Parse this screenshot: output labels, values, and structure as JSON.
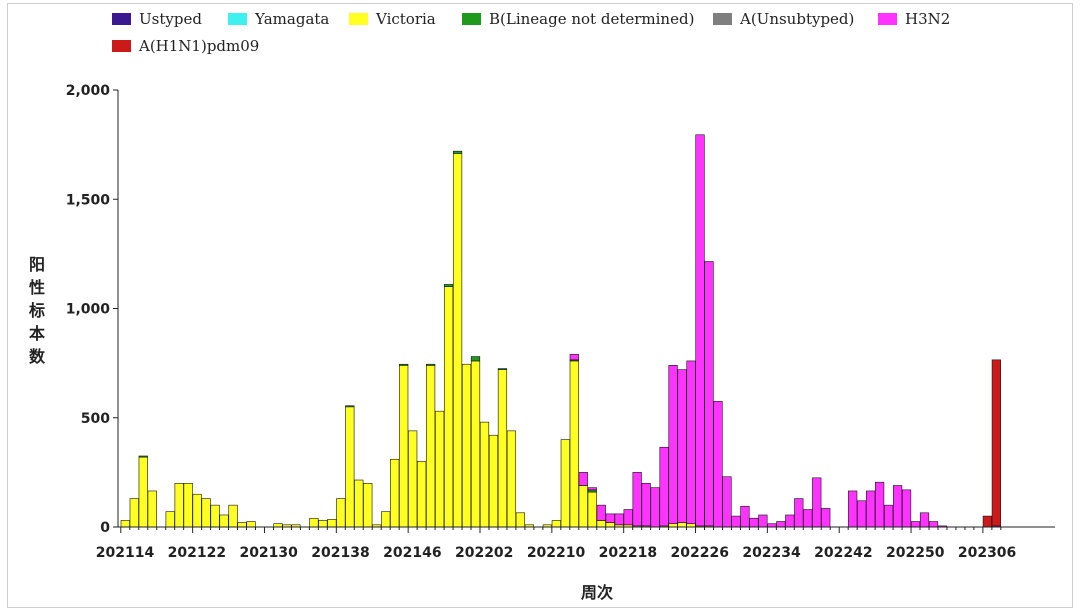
{
  "colors": {
    "Ustyped": "#3b1a8f",
    "Yamagata": "#3ff0f0",
    "Victoria": "#ffff22",
    "B(Lineage not determined)": "#1f9a1f",
    "A(Unsubtyped)": "#7f7f7f",
    "H3N2": "#ff33ff",
    "A(H1N1)pdm09": "#cc1a1a"
  },
  "chart_data": {
    "type": "bar",
    "stacked": true,
    "title": "",
    "xlabel": "周次",
    "ylabel": "阳性标本数",
    "ylim": [
      0,
      2000
    ],
    "yticks": [
      "0",
      "500",
      "1,000",
      "1,500",
      "2,000"
    ],
    "xtick_labels": [
      "202114",
      "202122",
      "202130",
      "202138",
      "202146",
      "202202",
      "202210",
      "202218",
      "202226",
      "202234",
      "202242",
      "202250",
      "202306"
    ],
    "legend_position": "top",
    "categories": [
      "202114",
      "202115",
      "202116",
      "202117",
      "202118",
      "202119",
      "202120",
      "202121",
      "202122",
      "202123",
      "202124",
      "202125",
      "202126",
      "202127",
      "202128",
      "202129",
      "202130",
      "202131",
      "202132",
      "202133",
      "202134",
      "202135",
      "202136",
      "202137",
      "202138",
      "202139",
      "202140",
      "202141",
      "202142",
      "202143",
      "202144",
      "202145",
      "202146",
      "202147",
      "202148",
      "202149",
      "202150",
      "202151",
      "202152",
      "202201",
      "202202",
      "202203",
      "202204",
      "202205",
      "202206",
      "202207",
      "202208",
      "202209",
      "202210",
      "202211",
      "202212",
      "202213",
      "202214",
      "202215",
      "202216",
      "202217",
      "202218",
      "202219",
      "202220",
      "202221",
      "202222",
      "202223",
      "202224",
      "202225",
      "202226",
      "202227",
      "202228",
      "202229",
      "202230",
      "202231",
      "202232",
      "202233",
      "202234",
      "202235",
      "202236",
      "202237",
      "202238",
      "202239",
      "202240",
      "202241",
      "202242",
      "202243",
      "202244",
      "202245",
      "202246",
      "202247",
      "202248",
      "202249",
      "202250",
      "202251",
      "202252",
      "202301",
      "202302",
      "202303",
      "202304",
      "202305",
      "202306",
      "202307"
    ],
    "series": [
      {
        "name": "Ustyped",
        "values": [
          0,
          0,
          0,
          0,
          0,
          0,
          0,
          0,
          0,
          0,
          0,
          0,
          0,
          0,
          0,
          0,
          0,
          0,
          0,
          0,
          0,
          0,
          0,
          0,
          0,
          0,
          0,
          0,
          0,
          0,
          0,
          0,
          0,
          0,
          0,
          0,
          0,
          0,
          0,
          0,
          0,
          0,
          0,
          0,
          0,
          0,
          0,
          0,
          0,
          0,
          0,
          0,
          0,
          0,
          0,
          0,
          0,
          0,
          0,
          0,
          0,
          0,
          0,
          0,
          0,
          0,
          0,
          0,
          0,
          0,
          0,
          0,
          0,
          0,
          0,
          0,
          0,
          0,
          0,
          0,
          0,
          0,
          0,
          0,
          0,
          0,
          0,
          0,
          0,
          0,
          0,
          0,
          0,
          0,
          0,
          0,
          0,
          0
        ]
      },
      {
        "name": "Yamagata",
        "values": [
          0,
          0,
          0,
          0,
          0,
          0,
          0,
          0,
          0,
          0,
          0,
          0,
          0,
          0,
          0,
          0,
          0,
          0,
          0,
          0,
          0,
          0,
          0,
          0,
          0,
          0,
          0,
          0,
          0,
          0,
          0,
          0,
          0,
          0,
          0,
          0,
          0,
          0,
          0,
          0,
          0,
          0,
          0,
          0,
          0,
          0,
          0,
          0,
          0,
          0,
          0,
          0,
          0,
          0,
          0,
          0,
          0,
          0,
          0,
          0,
          0,
          0,
          0,
          0,
          0,
          0,
          0,
          0,
          0,
          0,
          0,
          0,
          0,
          0,
          0,
          0,
          0,
          0,
          0,
          0,
          0,
          0,
          0,
          0,
          0,
          0,
          0,
          0,
          0,
          0,
          0,
          0,
          0,
          0,
          0,
          0,
          0,
          0
        ]
      },
      {
        "name": "Victoria",
        "values": [
          30,
          130,
          320,
          165,
          0,
          70,
          200,
          200,
          150,
          130,
          100,
          55,
          100,
          20,
          25,
          0,
          0,
          15,
          10,
          10,
          0,
          40,
          30,
          35,
          130,
          550,
          215,
          200,
          10,
          70,
          310,
          740,
          440,
          300,
          740,
          530,
          1100,
          1710,
          745,
          760,
          480,
          420,
          720,
          440,
          65,
          10,
          0,
          10,
          30,
          400,
          760,
          190,
          160,
          30,
          20,
          10,
          10,
          5,
          5,
          0,
          5,
          15,
          20,
          15,
          5,
          5,
          0,
          0,
          0,
          0,
          0,
          0,
          0,
          0,
          0,
          0,
          0,
          0,
          0,
          0,
          0,
          0,
          0,
          0,
          0,
          0,
          0,
          0,
          0,
          0,
          0,
          0,
          0,
          0,
          0,
          0,
          0,
          0
        ]
      },
      {
        "name": "B(Lineage not determined)",
        "values": [
          0,
          0,
          5,
          0,
          0,
          0,
          0,
          0,
          0,
          0,
          0,
          0,
          0,
          0,
          0,
          0,
          0,
          0,
          0,
          0,
          0,
          0,
          0,
          0,
          0,
          5,
          0,
          0,
          0,
          0,
          0,
          5,
          0,
          0,
          5,
          0,
          10,
          10,
          0,
          20,
          0,
          0,
          5,
          0,
          0,
          0,
          0,
          0,
          0,
          0,
          5,
          0,
          10,
          0,
          0,
          0,
          0,
          0,
          0,
          0,
          0,
          0,
          0,
          0,
          0,
          0,
          0,
          0,
          0,
          0,
          0,
          0,
          0,
          0,
          0,
          0,
          0,
          0,
          0,
          0,
          0,
          0,
          0,
          0,
          0,
          0,
          0,
          0,
          0,
          0,
          0,
          0,
          0,
          0,
          0,
          0,
          0,
          0
        ]
      },
      {
        "name": "A(Unsubtyped)",
        "values": [
          0,
          0,
          0,
          0,
          0,
          0,
          0,
          0,
          0,
          0,
          0,
          0,
          0,
          0,
          0,
          0,
          0,
          0,
          0,
          0,
          0,
          0,
          0,
          0,
          0,
          0,
          0,
          0,
          0,
          0,
          0,
          0,
          0,
          0,
          0,
          0,
          0,
          0,
          0,
          0,
          0,
          0,
          0,
          0,
          0,
          0,
          0,
          0,
          0,
          0,
          0,
          0,
          0,
          0,
          0,
          0,
          0,
          0,
          0,
          0,
          0,
          0,
          0,
          0,
          0,
          0,
          0,
          0,
          0,
          0,
          0,
          0,
          0,
          0,
          0,
          0,
          0,
          0,
          0,
          0,
          0,
          0,
          0,
          0,
          0,
          0,
          0,
          0,
          0,
          0,
          0,
          0,
          0,
          0,
          0,
          0,
          0,
          0
        ]
      },
      {
        "name": "H3N2",
        "values": [
          0,
          0,
          0,
          0,
          0,
          0,
          0,
          0,
          0,
          0,
          0,
          0,
          0,
          0,
          0,
          0,
          0,
          0,
          0,
          0,
          0,
          0,
          0,
          0,
          0,
          0,
          0,
          0,
          0,
          0,
          0,
          0,
          0,
          0,
          0,
          0,
          0,
          0,
          0,
          0,
          0,
          0,
          0,
          0,
          0,
          0,
          0,
          0,
          0,
          0,
          25,
          60,
          10,
          70,
          40,
          50,
          70,
          245,
          195,
          180,
          360,
          725,
          700,
          745,
          1790,
          1210,
          575,
          230,
          50,
          95,
          40,
          55,
          15,
          25,
          55,
          130,
          80,
          225,
          85,
          0,
          0,
          165,
          120,
          165,
          205,
          100,
          190,
          170,
          25,
          65,
          25,
          5,
          0,
          0,
          0,
          0,
          0,
          5
        ]
      },
      {
        "name": "A(H1N1)pdm09",
        "values": [
          0,
          0,
          0,
          0,
          0,
          0,
          0,
          0,
          0,
          0,
          0,
          0,
          0,
          0,
          0,
          0,
          0,
          0,
          0,
          0,
          0,
          0,
          0,
          0,
          0,
          0,
          0,
          0,
          0,
          0,
          0,
          0,
          0,
          0,
          0,
          0,
          0,
          0,
          0,
          0,
          0,
          0,
          0,
          0,
          0,
          0,
          0,
          0,
          0,
          0,
          0,
          0,
          0,
          0,
          0,
          0,
          0,
          0,
          0,
          0,
          0,
          0,
          0,
          0,
          0,
          0,
          0,
          0,
          0,
          0,
          0,
          0,
          0,
          0,
          0,
          0,
          0,
          0,
          0,
          0,
          0,
          0,
          0,
          0,
          0,
          0,
          0,
          0,
          0,
          0,
          0,
          0,
          0,
          0,
          0,
          0,
          50,
          760
        ]
      }
    ]
  }
}
